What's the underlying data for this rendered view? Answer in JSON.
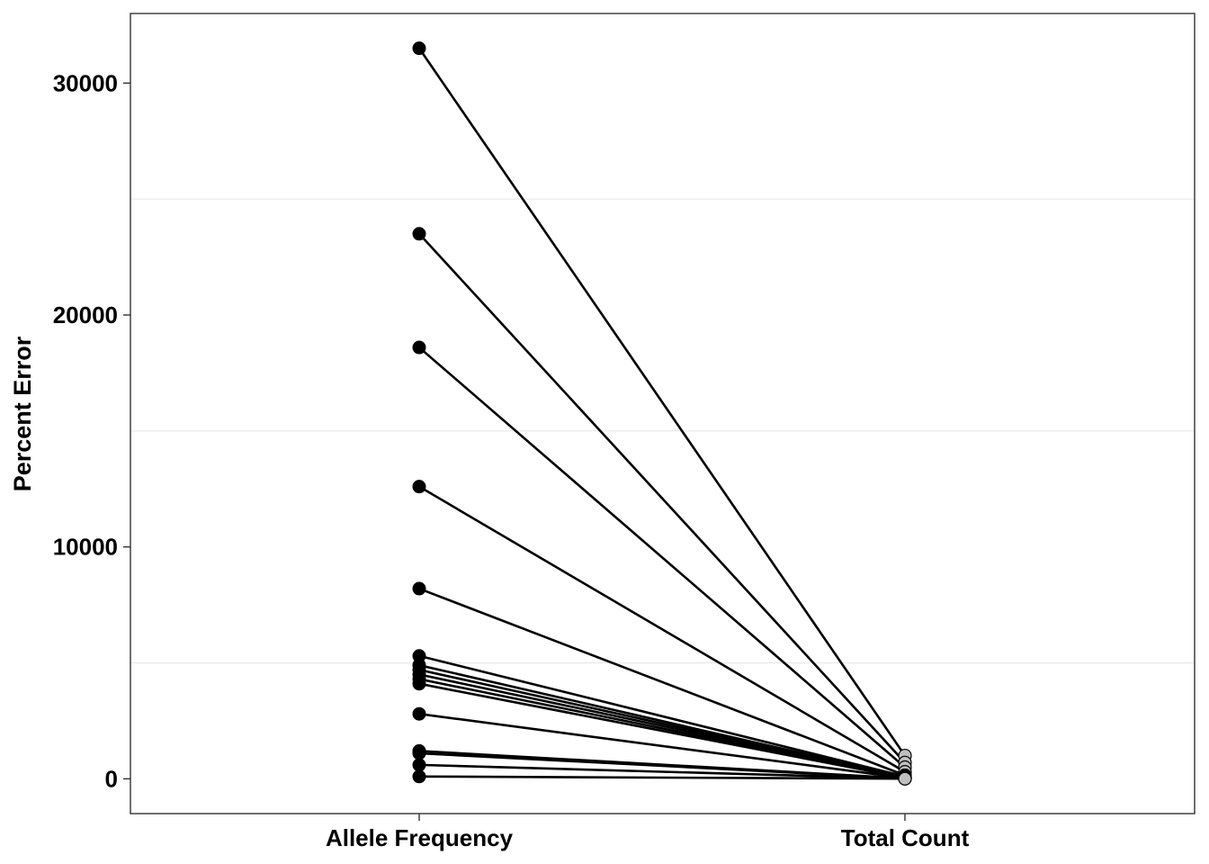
{
  "chart_data": {
    "type": "line",
    "title": "",
    "xlabel": "",
    "ylabel": "Percent Error",
    "categories": [
      "Allele Frequency",
      "Total Count"
    ],
    "y_ticks": [
      0,
      10000,
      20000,
      30000
    ],
    "y_minor_gridlines": [
      5000,
      15000,
      25000
    ],
    "ylim": [
      -1500,
      33000
    ],
    "grid": true,
    "legend": "none",
    "colors": {
      "start_point": "#000000",
      "end_point": "#bfbfbf",
      "line": "#000000",
      "grid": "#ebebeb",
      "border": "#333333"
    },
    "series": [
      {
        "values": [
          31500,
          1000
        ]
      },
      {
        "values": [
          23500,
          700
        ]
      },
      {
        "values": [
          18600,
          500
        ]
      },
      {
        "values": [
          12600,
          300
        ]
      },
      {
        "values": [
          8200,
          150
        ]
      },
      {
        "values": [
          5300,
          100
        ]
      },
      {
        "values": [
          4900,
          80
        ]
      },
      {
        "values": [
          4700,
          70
        ]
      },
      {
        "values": [
          4500,
          60
        ]
      },
      {
        "values": [
          4300,
          50
        ]
      },
      {
        "values": [
          4100,
          40
        ]
      },
      {
        "values": [
          2800,
          30
        ]
      },
      {
        "values": [
          1200,
          20
        ]
      },
      {
        "values": [
          1100,
          15
        ]
      },
      {
        "values": [
          600,
          10
        ]
      },
      {
        "values": [
          100,
          5
        ]
      }
    ]
  }
}
